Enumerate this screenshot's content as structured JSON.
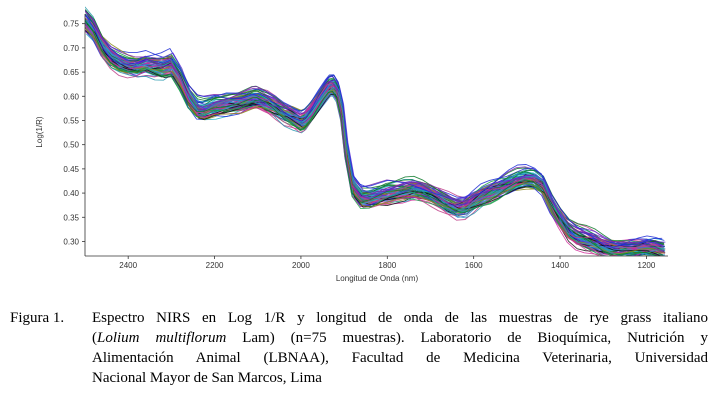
{
  "chart_data": {
    "type": "line",
    "title": "",
    "xlabel": "Longitud de Onda (nm)",
    "ylabel": "Log(1/R)",
    "xlim": [
      2500,
      1150
    ],
    "ylim": [
      0.27,
      0.77
    ],
    "x_reversed": true,
    "grid": false,
    "legend": "none",
    "x_ticks": [
      "2400",
      "2200",
      "2000",
      "1800",
      "1600",
      "1400",
      "1200"
    ],
    "y_ticks": [
      "0.30",
      "0.35",
      "0.40",
      "0.45",
      "0.50",
      "0.55",
      "0.60",
      "0.65",
      "0.70",
      "0.75"
    ],
    "series_count": 75,
    "representative_spectrum": {
      "x": [
        2500,
        2480,
        2460,
        2440,
        2420,
        2400,
        2380,
        2360,
        2340,
        2320,
        2300,
        2280,
        2260,
        2240,
        2225,
        2200,
        2170,
        2140,
        2110,
        2100,
        2080,
        2060,
        2040,
        2020,
        2000,
        1990,
        1975,
        1960,
        1945,
        1935,
        1925,
        1915,
        1905,
        1895,
        1880,
        1860,
        1840,
        1800,
        1760,
        1740,
        1720,
        1700,
        1680,
        1660,
        1640,
        1620,
        1600,
        1580,
        1560,
        1540,
        1520,
        1500,
        1480,
        1460,
        1440,
        1420,
        1400,
        1380,
        1360,
        1340,
        1320,
        1300,
        1280,
        1260,
        1240,
        1220,
        1200,
        1180,
        1160
      ],
      "y": [
        0.76,
        0.74,
        0.705,
        0.684,
        0.672,
        0.665,
        0.663,
        0.668,
        0.664,
        0.662,
        0.668,
        0.64,
        0.6,
        0.575,
        0.572,
        0.58,
        0.585,
        0.59,
        0.598,
        0.598,
        0.59,
        0.58,
        0.568,
        0.56,
        0.55,
        0.554,
        0.57,
        0.59,
        0.61,
        0.622,
        0.624,
        0.61,
        0.57,
        0.49,
        0.415,
        0.393,
        0.392,
        0.4,
        0.407,
        0.41,
        0.407,
        0.4,
        0.39,
        0.38,
        0.372,
        0.374,
        0.385,
        0.396,
        0.404,
        0.412,
        0.42,
        0.428,
        0.432,
        0.43,
        0.418,
        0.38,
        0.35,
        0.325,
        0.312,
        0.306,
        0.3,
        0.292,
        0.287,
        0.286,
        0.287,
        0.288,
        0.29,
        0.288,
        0.283
      ]
    },
    "line_colors": [
      "#1f2bd6",
      "#0d7a2a",
      "#7b2aa8",
      "#d12a9a",
      "#26b4c8",
      "#111111",
      "#8a8a1a",
      "#3a7bd5",
      "#19a04a",
      "#5a2bd6",
      "#c0408a",
      "#2a9ab0"
    ]
  },
  "caption": {
    "label": "Figura 1.",
    "lines": [
      [
        "Espectro NIRS en Log 1/R y longitud de onda de las muestras de rye grass italiano"
      ],
      [
        "(",
        "Lolium multiflorum",
        " Lam) (n=75 muestras). Laboratorio de Bioquímica, Nutrición y"
      ],
      [
        "Alimentación Animal (LBNAA), Facultad de Medicina Veterinaria, Universidad"
      ],
      [
        "Nacional Mayor de San Marcos, Lima"
      ]
    ]
  }
}
